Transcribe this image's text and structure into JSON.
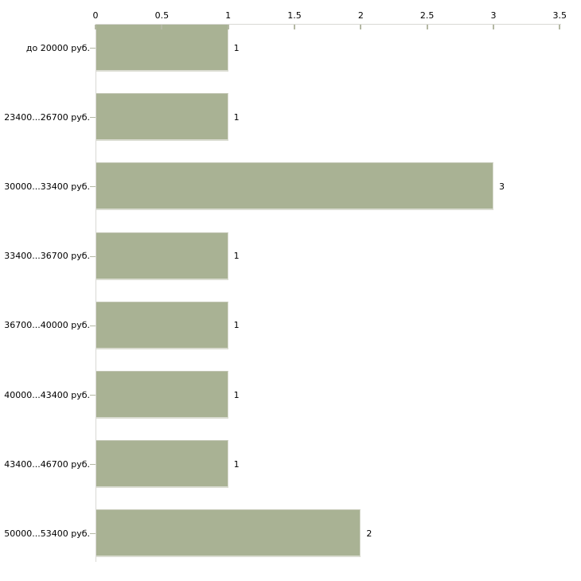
{
  "chart_data": {
    "type": "bar",
    "orientation": "horizontal",
    "title": "",
    "xlabel": "",
    "ylabel": "",
    "categories": [
      "до 20000 руб.",
      "23400...26700 руб.",
      "30000...33400 руб.",
      "33400...36700 руб.",
      "36700...40000 руб.",
      "40000...43400 руб.",
      "43400...46700 руб.",
      "50000...53400 руб."
    ],
    "values": [
      1,
      1,
      3,
      1,
      1,
      1,
      1,
      2
    ],
    "value_labels": [
      "1",
      "1",
      "3",
      "1",
      "1",
      "1",
      "1",
      "2"
    ],
    "x_ticks": [
      0,
      0.5,
      1,
      1.5,
      2,
      2.5,
      3,
      3.5
    ],
    "x_tick_labels": [
      "0",
      "0.5",
      "1",
      "1.5",
      "2",
      "2.5",
      "3",
      "3.5"
    ],
    "xlim": [
      0,
      3.5
    ],
    "axis_position": "top",
    "grid": false,
    "legend": false,
    "colors": {
      "bar_fill": "#a9b294",
      "bar_edge_top": "#c1c5b2",
      "bar_edge_light": "#dadcd1",
      "axis_line": "#d9d9d4",
      "tick_mark": "#b4b8a4",
      "text": "#000000",
      "background": "#ffffff"
    }
  }
}
